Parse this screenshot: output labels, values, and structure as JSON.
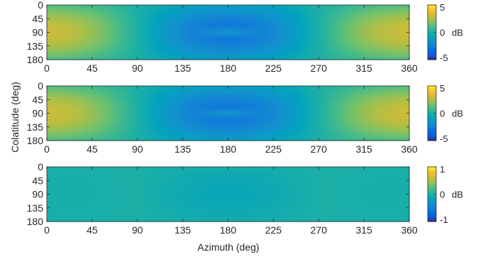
{
  "figure": {
    "xlabel": "Azimuth (deg)",
    "ylabel": "Colatitude (deg)",
    "colorbar_unit": "dB"
  },
  "chart_data": [
    {
      "type": "heatmap",
      "x_range": [
        0,
        360
      ],
      "y_range": [
        0,
        180
      ],
      "y_reversed": true,
      "xticks": [
        0,
        45,
        90,
        135,
        180,
        225,
        270,
        315,
        360
      ],
      "yticks": [
        0,
        45,
        90,
        135,
        180
      ],
      "colormap": "parula",
      "clim": [
        -5,
        5
      ],
      "colorbar_ticks": [
        5,
        0,
        -5
      ],
      "colorbar_labels": [
        "5",
        "0",
        "-5"
      ],
      "field": {
        "peak_db": 3,
        "dip_db": -3,
        "center_bump_db": 1.3
      }
    },
    {
      "type": "heatmap",
      "x_range": [
        0,
        360
      ],
      "y_range": [
        0,
        180
      ],
      "y_reversed": true,
      "xticks": [
        0,
        45,
        90,
        135,
        180,
        225,
        270,
        315,
        360
      ],
      "yticks": [
        0,
        45,
        90,
        135,
        180
      ],
      "colormap": "parula",
      "clim": [
        -5,
        5
      ],
      "colorbar_ticks": [
        5,
        0,
        -5
      ],
      "colorbar_labels": [
        "5",
        "0",
        "-5"
      ],
      "field": {
        "peak_db": 3,
        "dip_db": -3,
        "center_bump_db": 1.3
      }
    },
    {
      "type": "heatmap",
      "x_range": [
        0,
        360
      ],
      "y_range": [
        0,
        180
      ],
      "y_reversed": true,
      "xticks": [
        0,
        45,
        90,
        135,
        180,
        225,
        270,
        315,
        360
      ],
      "yticks": [
        0,
        45,
        90,
        135,
        180
      ],
      "colormap": "parula",
      "clim": [
        -1,
        1
      ],
      "colorbar_ticks": [
        1,
        0,
        -1
      ],
      "colorbar_labels": [
        "1",
        "0",
        "-1"
      ],
      "field": {
        "peak_db": -0.02,
        "dip_db": -0.12,
        "center_bump_db": 0
      }
    }
  ]
}
